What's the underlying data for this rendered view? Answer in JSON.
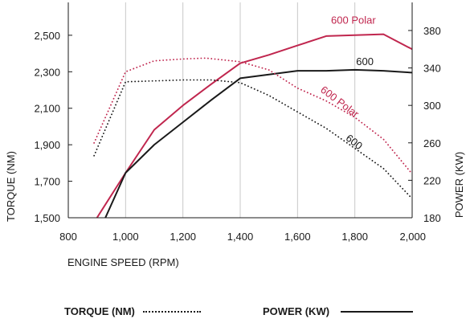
{
  "chart_data": {
    "type": "line",
    "xlabel": "ENGINE SPEED (RPM)",
    "ylabel_left": "TORQUE (NM)",
    "ylabel_right": "POWER (KW)",
    "xlim": [
      800,
      2000
    ],
    "ylim_left": [
      1500,
      2680
    ],
    "ylim_right": [
      180,
      410
    ],
    "x_ticks": [
      800,
      1000,
      1200,
      1400,
      1600,
      1800,
      2000
    ],
    "x_tick_labels": [
      "800",
      "1,000",
      "1,200",
      "1,400",
      "1,600",
      "1,800",
      "2,000"
    ],
    "y_left_ticks": [
      1500,
      1700,
      1900,
      2100,
      2300,
      2500
    ],
    "y_left_tick_labels": [
      "1,500",
      "1,700",
      "1,900",
      "2,100",
      "2,300",
      "2,500"
    ],
    "y_right_ticks": [
      180,
      220,
      260,
      300,
      340,
      380
    ],
    "y_right_tick_labels": [
      "180",
      "220",
      "260",
      "300",
      "340",
      "380"
    ],
    "grid": "vertical",
    "series": [
      {
        "name": "600 Polar",
        "measure": "power",
        "axis": "right",
        "style": "solid",
        "color": "#c0264e",
        "points": [
          [
            900,
            180
          ],
          [
            1000,
            228
          ],
          [
            1100,
            274
          ],
          [
            1200,
            300
          ],
          [
            1300,
            323
          ],
          [
            1400,
            345
          ],
          [
            1500,
            354
          ],
          [
            1600,
            364
          ],
          [
            1700,
            374
          ],
          [
            1800,
            375
          ],
          [
            1900,
            376
          ],
          [
            2000,
            360
          ]
        ]
      },
      {
        "name": "600",
        "measure": "power",
        "axis": "right",
        "style": "solid",
        "color": "#1a1a1a",
        "points": [
          [
            900,
            160
          ],
          [
            1000,
            228
          ],
          [
            1100,
            258
          ],
          [
            1200,
            282
          ],
          [
            1300,
            306
          ],
          [
            1400,
            329
          ],
          [
            1500,
            333
          ],
          [
            1600,
            337
          ],
          [
            1700,
            337
          ],
          [
            1800,
            338
          ],
          [
            1900,
            337
          ],
          [
            2000,
            335
          ]
        ]
      },
      {
        "name": "600 Polar",
        "measure": "torque",
        "axis": "left",
        "style": "dotted",
        "color": "#c0264e",
        "points": [
          [
            890,
            1910
          ],
          [
            1000,
            2300
          ],
          [
            1100,
            2360
          ],
          [
            1200,
            2370
          ],
          [
            1280,
            2375
          ],
          [
            1400,
            2355
          ],
          [
            1500,
            2310
          ],
          [
            1600,
            2210
          ],
          [
            1700,
            2140
          ],
          [
            1800,
            2050
          ],
          [
            1900,
            1930
          ],
          [
            2000,
            1740
          ]
        ]
      },
      {
        "name": "600",
        "measure": "torque",
        "axis": "left",
        "style": "dotted",
        "color": "#1a1a1a",
        "points": [
          [
            890,
            1840
          ],
          [
            1000,
            2245
          ],
          [
            1100,
            2250
          ],
          [
            1200,
            2255
          ],
          [
            1300,
            2255
          ],
          [
            1400,
            2240
          ],
          [
            1500,
            2170
          ],
          [
            1600,
            2080
          ],
          [
            1700,
            1990
          ],
          [
            1800,
            1880
          ],
          [
            1900,
            1770
          ],
          [
            2000,
            1605
          ]
        ]
      }
    ],
    "annotations": [
      {
        "text": "600 Polar",
        "series": 0,
        "color": "#c0264e",
        "x": 1795,
        "yv": 2563,
        "rotate": 0
      },
      {
        "text": "600",
        "series": 1,
        "color": "#1a1a1a",
        "x": 1835,
        "yv": 2337,
        "rotate": 0
      },
      {
        "text": "600 Polar",
        "series": 2,
        "color": "#c0264e",
        "x": 1740,
        "yv": 2120,
        "rotate": 37
      },
      {
        "text": "600",
        "series": 3,
        "color": "#1a1a1a",
        "x": 1790,
        "yv": 1900,
        "rotate": 38
      }
    ],
    "legend": [
      {
        "label": "TORQUE (NM)",
        "style": "dotted"
      },
      {
        "label": "POWER (KW)",
        "style": "solid"
      }
    ]
  }
}
